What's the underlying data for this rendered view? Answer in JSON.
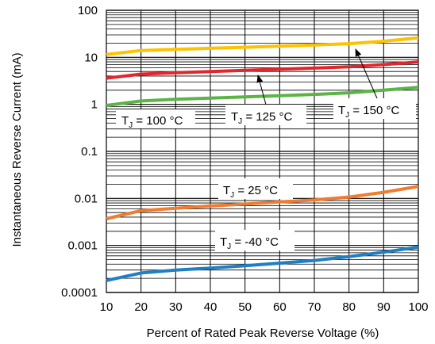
{
  "chart_data": {
    "type": "line",
    "title": "",
    "xlabel": "Percent of Rated Peak Reverse Voltage (%)",
    "ylabel": "Instantaneous Reverse Current (mA)",
    "x_scale": "linear",
    "y_scale": "log",
    "xlim": [
      10,
      100
    ],
    "ylim": [
      0.0001,
      100
    ],
    "grid": true,
    "x_ticks": [
      10,
      20,
      30,
      40,
      50,
      60,
      70,
      80,
      90,
      100
    ],
    "x_tick_labels": [
      "10",
      "20",
      "30",
      "40",
      "50",
      "60",
      "70",
      "80",
      "90",
      "100"
    ],
    "y_ticks": [
      0.0001,
      0.001,
      0.01,
      0.1,
      1,
      10,
      100
    ],
    "y_tick_labels": [
      "0.0001",
      "0.001",
      "0.01",
      "0.1",
      "1",
      "10",
      "100"
    ],
    "x": [
      10,
      20,
      30,
      40,
      50,
      60,
      70,
      80,
      90,
      100
    ],
    "series": [
      {
        "color": "#fdc300",
        "values": [
          11.5,
          14.0,
          14.8,
          15.6,
          16.4,
          17.3,
          18.3,
          19.5,
          22.0,
          26.0
        ]
      },
      {
        "color": "#e3262b",
        "values": [
          3.6,
          4.4,
          4.7,
          5.0,
          5.3,
          5.6,
          5.9,
          6.3,
          7.0,
          8.0
        ]
      },
      {
        "color": "#5cb346",
        "values": [
          0.95,
          1.18,
          1.28,
          1.36,
          1.44,
          1.53,
          1.63,
          1.76,
          2.0,
          2.3
        ]
      },
      {
        "color": "#ef7c2f",
        "values": [
          0.0037,
          0.0055,
          0.0062,
          0.0069,
          0.0076,
          0.0084,
          0.0093,
          0.0107,
          0.0135,
          0.018
        ]
      },
      {
        "color": "#1f7fc4",
        "values": [
          0.00018,
          0.00026,
          0.0003,
          0.00033,
          0.00037,
          0.00042,
          0.00048,
          0.00058,
          0.00072,
          0.00092
        ]
      }
    ],
    "annotations": [
      {
        "main": "T",
        "sub": "J",
        "rest": " = 100 °C"
      },
      {
        "main": "T",
        "sub": "J",
        "rest": " = 125 °C"
      },
      {
        "main": "T",
        "sub": "J",
        "rest": " = 150 °C"
      },
      {
        "main": "T",
        "sub": "J",
        "rest": " = 25 °C"
      },
      {
        "main": "T",
        "sub": "J",
        "rest": " = -40 °C"
      }
    ]
  }
}
